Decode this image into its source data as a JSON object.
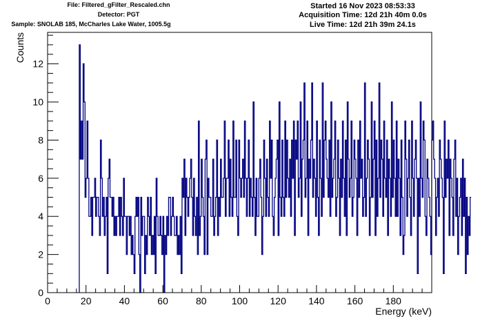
{
  "header": {
    "file": "File: Filtered_gFilter_Rescaled.chn",
    "detector": "Detector: PGT",
    "sample": "Sample: SNOLAB 185, McCharles Lake Water, 1005.5g",
    "started": "Started 16 Nov 2023 08:53:33",
    "acquisition": "Acquisition Time: 12d 21h 40m 0.0s",
    "live": "Live Time: 12d 21h 39m 24.1s"
  },
  "chart_data": {
    "type": "histogram",
    "xlabel": "Energy (keV)",
    "ylabel": "Counts",
    "xlim": [
      0,
      200
    ],
    "ylim": [
      0,
      13.65
    ],
    "x_ticks": [
      0,
      20,
      40,
      60,
      80,
      100,
      120,
      140,
      160,
      180
    ],
    "y_ticks": [
      0,
      2,
      4,
      6,
      8,
      10,
      12
    ],
    "grid": false,
    "line_color": "#000080",
    "bin_width": 0.5,
    "x_start": 16.5,
    "counts": [
      13,
      7,
      9,
      7,
      12,
      10,
      5,
      6,
      9,
      6,
      4,
      4,
      5,
      3,
      5,
      5,
      6,
      4,
      5,
      5,
      4,
      3,
      8,
      6,
      4,
      5,
      3,
      4,
      5,
      1,
      6,
      7,
      5,
      5,
      4,
      5,
      3,
      4,
      3,
      4,
      4,
      5,
      3,
      5,
      4,
      3,
      6,
      4,
      4,
      2,
      4,
      4,
      3,
      4,
      2,
      3,
      2,
      1,
      4,
      5,
      4,
      5,
      2,
      0,
      5,
      3,
      4,
      4,
      1,
      3,
      2,
      5,
      4,
      3,
      5,
      2,
      3,
      2,
      4,
      1,
      6,
      4,
      3,
      3,
      4,
      3,
      2,
      4,
      0,
      3,
      2,
      4,
      3,
      5,
      5,
      3,
      4,
      5,
      4,
      3,
      3,
      4,
      2,
      3,
      2,
      4,
      1,
      6,
      5,
      7,
      3,
      6,
      5,
      4,
      5,
      6,
      7,
      5,
      3,
      6,
      4,
      3,
      5,
      2,
      9,
      3,
      4,
      7,
      5,
      4,
      2,
      7,
      8,
      2,
      6,
      5,
      5,
      4,
      4,
      7,
      3,
      4,
      5,
      8,
      3,
      5,
      4,
      7,
      5,
      5,
      6,
      9,
      4,
      6,
      6,
      8,
      4,
      7,
      5,
      4,
      9,
      5,
      5,
      8,
      4,
      3,
      8,
      6,
      5,
      6,
      7,
      5,
      9,
      6,
      4,
      6,
      8,
      4,
      6,
      5,
      4,
      10,
      5,
      3,
      6,
      4,
      4,
      6,
      7,
      5,
      2,
      4,
      8,
      6,
      4,
      7,
      5,
      4,
      9,
      6,
      8,
      4,
      3,
      5,
      6,
      7,
      8,
      3,
      10,
      5,
      4,
      8,
      5,
      4,
      9,
      5,
      8,
      6,
      5,
      7,
      4,
      8,
      6,
      9,
      3,
      8,
      7,
      9,
      5,
      6,
      10,
      4,
      7,
      8,
      11,
      5,
      6,
      9,
      3,
      7,
      6,
      8,
      11,
      5,
      7,
      6,
      4,
      9,
      5,
      3,
      8,
      6,
      4,
      11,
      5,
      8,
      9,
      7,
      6,
      5,
      8,
      4,
      10,
      5,
      6,
      7,
      9,
      4,
      5,
      8,
      6,
      3,
      7,
      5,
      9,
      6,
      4,
      8,
      3,
      10,
      7,
      5,
      6,
      9,
      4,
      5,
      8,
      7,
      6,
      3,
      8,
      5,
      9,
      6,
      7,
      4,
      5,
      11,
      4,
      6,
      8,
      7,
      3,
      5,
      10,
      5,
      7,
      9,
      3,
      8,
      4,
      6,
      11,
      5,
      8,
      7,
      4,
      9,
      6,
      5,
      8,
      3,
      7,
      6,
      4,
      10,
      5,
      8,
      6,
      4,
      9,
      4,
      7,
      6,
      3,
      8,
      5,
      2,
      3,
      9,
      7,
      4,
      6,
      8,
      5,
      3,
      9,
      6,
      4,
      7,
      8,
      6,
      1,
      6,
      4,
      10,
      6,
      5,
      9,
      8,
      4,
      3,
      7,
      6,
      5,
      4,
      2,
      8,
      9,
      7,
      6,
      3,
      5,
      6,
      4,
      8,
      7,
      6,
      5,
      1,
      9,
      5,
      7,
      6,
      8,
      3,
      7,
      6,
      5,
      3,
      7,
      8,
      4,
      6,
      2,
      4,
      5,
      6,
      3,
      7,
      4,
      6,
      1,
      5,
      2,
      4,
      3,
      5
    ]
  }
}
